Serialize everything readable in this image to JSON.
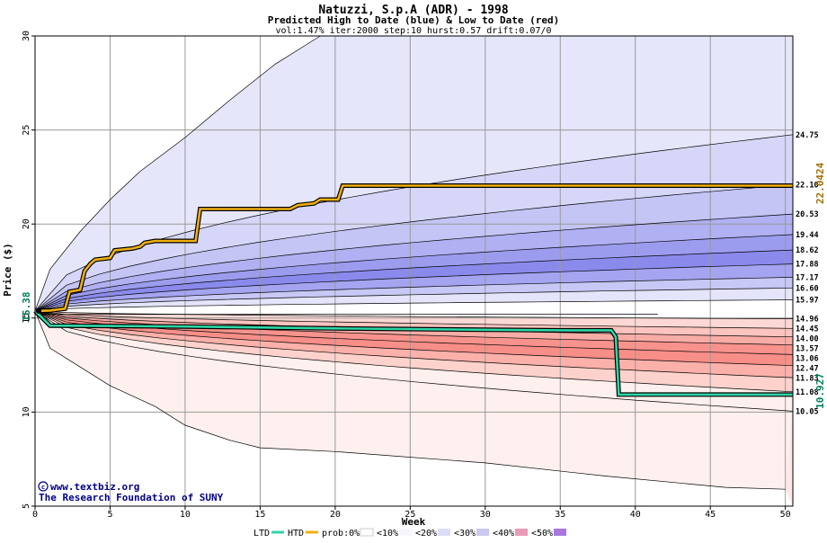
{
  "chart_data": {
    "type": "area",
    "title": "Natuzzi, S.p.A (ADR) - 1998",
    "subtitle": "Predicted High to Date (blue) &  Low to Date (red)",
    "params": "vol:1.47% iter:2000 step:10 hurst:0.57 drift:0.07/0",
    "xlabel": "Week",
    "ylabel": "Price ($)",
    "xlim": [
      0,
      50.5
    ],
    "ylim": [
      5,
      30
    ],
    "xticks": [
      0,
      5,
      10,
      15,
      20,
      25,
      30,
      35,
      40,
      45,
      50
    ],
    "yticks": [
      5,
      10,
      15,
      20,
      25,
      30
    ],
    "grid": true,
    "start_price": 15.38,
    "start_label": "15.38",
    "high_bands": [
      24.75,
      22.1,
      20.53,
      19.44,
      18.62,
      17.88,
      17.17,
      16.6,
      15.97
    ],
    "low_bands": [
      14.96,
      14.45,
      14.0,
      13.57,
      13.06,
      12.47,
      11.83,
      11.08,
      10.05
    ],
    "band_labels": [
      "24.75",
      "22.10",
      "20.53",
      "19.44",
      "18.62",
      "17.88",
      "17.17",
      "16.60",
      "15.97",
      "14.96",
      "14.45",
      "14.00",
      "13.57",
      "13.06",
      "12.47",
      "11.83",
      "11.08",
      "10.05"
    ],
    "upper_envelope": [
      [
        0,
        15.38
      ],
      [
        1,
        17.6
      ],
      [
        3,
        19.6
      ],
      [
        5,
        21.3
      ],
      [
        7,
        22.8
      ],
      [
        10,
        24.6
      ],
      [
        13,
        26.6
      ],
      [
        16,
        28.5
      ],
      [
        18,
        29.5
      ],
      [
        19,
        30
      ]
    ],
    "lower_envelope": [
      [
        0,
        15.38
      ],
      [
        1,
        13.4
      ],
      [
        3,
        12.4
      ],
      [
        5,
        11.4
      ],
      [
        8,
        10.3
      ],
      [
        10,
        9.3
      ],
      [
        13,
        8.5
      ],
      [
        15,
        8.1
      ],
      [
        20,
        7.9
      ],
      [
        30,
        7.3
      ],
      [
        38,
        6.6
      ],
      [
        46,
        6.0
      ],
      [
        50,
        5.9
      ]
    ],
    "htd_series": {
      "name": "HTD",
      "final_label": "22.0424",
      "points": [
        [
          0,
          15.38
        ],
        [
          1,
          15.4
        ],
        [
          2,
          15.5
        ],
        [
          2.3,
          16.4
        ],
        [
          3,
          16.5
        ],
        [
          3.3,
          17.5
        ],
        [
          3.7,
          17.9
        ],
        [
          4,
          18.1
        ],
        [
          5,
          18.2
        ],
        [
          5.3,
          18.6
        ],
        [
          6.5,
          18.7
        ],
        [
          7,
          18.8
        ],
        [
          7.3,
          19.0
        ],
        [
          8,
          19.1
        ],
        [
          9,
          19.1
        ],
        [
          10,
          19.1
        ],
        [
          10.7,
          19.1
        ],
        [
          11,
          20.8
        ],
        [
          13,
          20.8
        ],
        [
          17,
          20.8
        ],
        [
          17.5,
          21.0
        ],
        [
          18.6,
          21.1
        ],
        [
          19,
          21.3
        ],
        [
          20.2,
          21.3
        ],
        [
          20.5,
          22.04
        ],
        [
          35,
          22.04
        ],
        [
          50.5,
          22.04
        ]
      ]
    },
    "ltd_series": {
      "name": "LTD",
      "final_label": "10.927",
      "points": [
        [
          0,
          15.38
        ],
        [
          0.5,
          15.0
        ],
        [
          1,
          14.6
        ],
        [
          5,
          14.58
        ],
        [
          10,
          14.55
        ],
        [
          20,
          14.45
        ],
        [
          30,
          14.38
        ],
        [
          35,
          14.35
        ],
        [
          38.4,
          14.35
        ],
        [
          38.7,
          14.0
        ],
        [
          38.9,
          10.93
        ],
        [
          45,
          10.93
        ],
        [
          50.5,
          10.93
        ]
      ]
    },
    "legend": {
      "items": [
        "LTD",
        "HTD",
        "prob:0%",
        "<10%",
        "<20%",
        "<30%",
        "<40%",
        "<50%"
      ],
      "colors": [
        "#2fd6a6",
        "#f0b010",
        "#ffffff",
        "#f5f5fd",
        "#dcdcf7",
        "#c8c8f0",
        "#e89ab8",
        "#a878e0"
      ]
    },
    "colors": {
      "high_text": "#a07000",
      "low_text": "#00805a",
      "credit": "#00008b",
      "high_fills": [
        "#f6f6fd",
        "#e6e6fb",
        "#d6d6f8",
        "#c4c4f5",
        "#b0b0f2",
        "#9c9cef",
        "#8a8aed",
        "#a4a4f1",
        "#c8c8f6",
        "#e4e4fb"
      ],
      "low_fills": [
        "#fde8e6",
        "#fcd8d4",
        "#fbc4be",
        "#f9aca6",
        "#f8928c",
        "#f88e88",
        "#fbb0aa",
        "#fdd2cc",
        "#fef0ee"
      ]
    }
  },
  "credits": {
    "line1": "www.textbiz.org",
    "line2": "The Research Foundation of SUNY"
  }
}
